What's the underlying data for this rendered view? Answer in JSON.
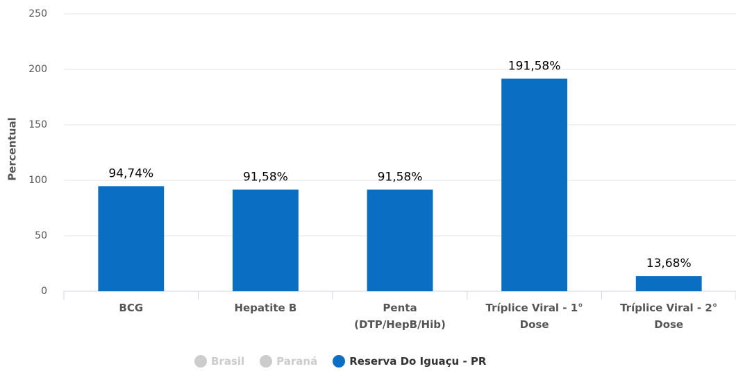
{
  "chart_data": {
    "type": "bar",
    "y_label": "Percentual",
    "categories": [
      "BCG",
      "Hepatite B",
      "Penta (DTP/HepB/Hib)",
      "Tríplice Viral - 1° Dose",
      "Tríplice Viral - 2° Dose"
    ],
    "series": [
      {
        "name": "Reserva Do Iguaçu - PR",
        "color": "#0a6fc2",
        "values": [
          94.74,
          91.58,
          91.58,
          191.58,
          13.68
        ],
        "value_labels": [
          "94,74%",
          "91,58%",
          "91,58%",
          "191,58%",
          "13,68%"
        ]
      }
    ],
    "hidden_series": [
      {
        "name": "Brasil",
        "color": "#cccccc"
      },
      {
        "name": "Paraná",
        "color": "#cccccc"
      }
    ],
    "ylim": [
      0,
      250
    ],
    "yticks": [
      0,
      50,
      100,
      150,
      200,
      250
    ],
    "grid": true
  }
}
